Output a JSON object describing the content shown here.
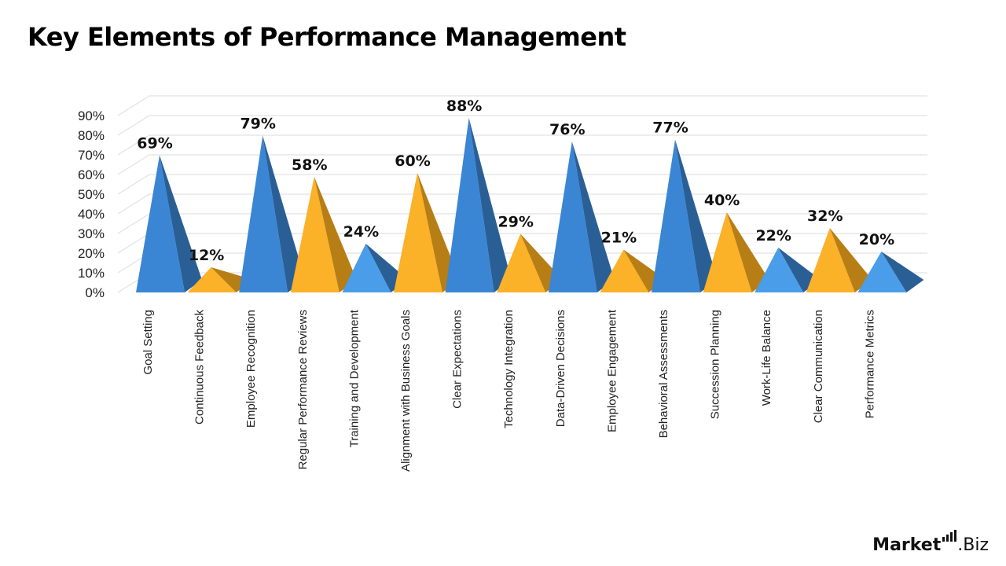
{
  "title": "Key Elements of Performance Management",
  "brand": {
    "bold": "Market",
    "rest": ".Biz"
  },
  "colors": {
    "blue": "#3a86d4",
    "yellow": "#fbb128"
  },
  "chart_data": {
    "type": "bar",
    "style": "3d-pyramid",
    "title": "Key Elements of Performance Management",
    "ylim": [
      0,
      90
    ],
    "yticks": [
      "0%",
      "10%",
      "20%",
      "30%",
      "40%",
      "50%",
      "60%",
      "70%",
      "80%",
      "90%"
    ],
    "grid": true,
    "categories": [
      "Goal Setting",
      "Continuous Feedback",
      "Employee Recognition",
      "Regular Performance Reviews",
      "Training and Development",
      "Alignment with Business Goals",
      "Clear Expectations",
      "Technology Integration",
      "Data-Driven Decisions",
      "Employee Engagement",
      "Behavioral Assessments",
      "Succession Planning",
      "Work-Life Balance",
      "Clear Communication",
      "Performance Metrics"
    ],
    "values": [
      69,
      12,
      79,
      58,
      24,
      60,
      88,
      29,
      76,
      21,
      77,
      40,
      22,
      32,
      20
    ],
    "value_labels": [
      "69%",
      "12%",
      "79%",
      "58%",
      "24%",
      "60%",
      "88%",
      "29%",
      "76%",
      "21%",
      "77%",
      "40%",
      "22%",
      "32%",
      "20%"
    ],
    "bar_colors": [
      "blue",
      "yellow",
      "blue",
      "yellow",
      "blue",
      "yellow",
      "blue",
      "yellow",
      "blue",
      "yellow",
      "blue",
      "yellow",
      "blue",
      "yellow",
      "blue"
    ]
  }
}
